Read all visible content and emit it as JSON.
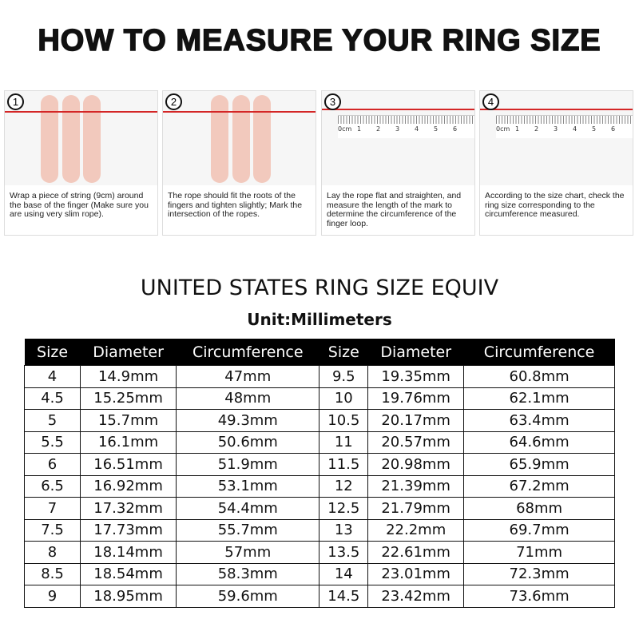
{
  "title": "HOW TO MEASURE YOUR RING SIZE",
  "steps": [
    {
      "num": "1",
      "text": "Wrap a piece of string (9cm) around the base of the finger (Make sure you are using very slim rope)."
    },
    {
      "num": "2",
      "text": "The rope should fit the roots of the fingers and tighten slightly; Mark the intersection of the ropes."
    },
    {
      "num": "3",
      "text": "Lay the rope flat and straighten, and measure the length of the mark to determine the circumference of the finger loop."
    },
    {
      "num": "4",
      "text": "According to the size chart, check the ring size corresponding to the circumference measured."
    }
  ],
  "ruler_labels": [
    "0cm",
    "1",
    "2",
    "3",
    "4",
    "5",
    "6"
  ],
  "chart_title": "UNITED STATES RING SIZE EQUIV",
  "unit": "Unit:Millimeters",
  "headers": [
    "Size",
    "Diameter",
    "Circumference",
    "Size",
    "Diameter",
    "Circumference"
  ],
  "rows": [
    [
      "4",
      "14.9mm",
      "47mm",
      "9.5",
      "19.35mm",
      "60.8mm"
    ],
    [
      "4.5",
      "15.25mm",
      "48mm",
      "10",
      "19.76mm",
      "62.1mm"
    ],
    [
      "5",
      "15.7mm",
      "49.3mm",
      "10.5",
      "20.17mm",
      "63.4mm"
    ],
    [
      "5.5",
      "16.1mm",
      "50.6mm",
      "11",
      "20.57mm",
      "64.6mm"
    ],
    [
      "6",
      "16.51mm",
      "51.9mm",
      "11.5",
      "20.98mm",
      "65.9mm"
    ],
    [
      "6.5",
      "16.92mm",
      "53.1mm",
      "12",
      "21.39mm",
      "67.2mm"
    ],
    [
      "7",
      "17.32mm",
      "54.4mm",
      "12.5",
      "21.79mm",
      "68mm"
    ],
    [
      "7.5",
      "17.73mm",
      "55.7mm",
      "13",
      "22.2mm",
      "69.7mm"
    ],
    [
      "8",
      "18.14mm",
      "57mm",
      "13.5",
      "22.61mm",
      "71mm"
    ],
    [
      "8.5",
      "18.54mm",
      "58.3mm",
      "14",
      "23.01mm",
      "72.3mm"
    ],
    [
      "9",
      "18.95mm",
      "59.6mm",
      "14.5",
      "23.42mm",
      "73.6mm"
    ]
  ],
  "colors": {
    "rope": "#d42626",
    "header_bg": "#000000"
  }
}
